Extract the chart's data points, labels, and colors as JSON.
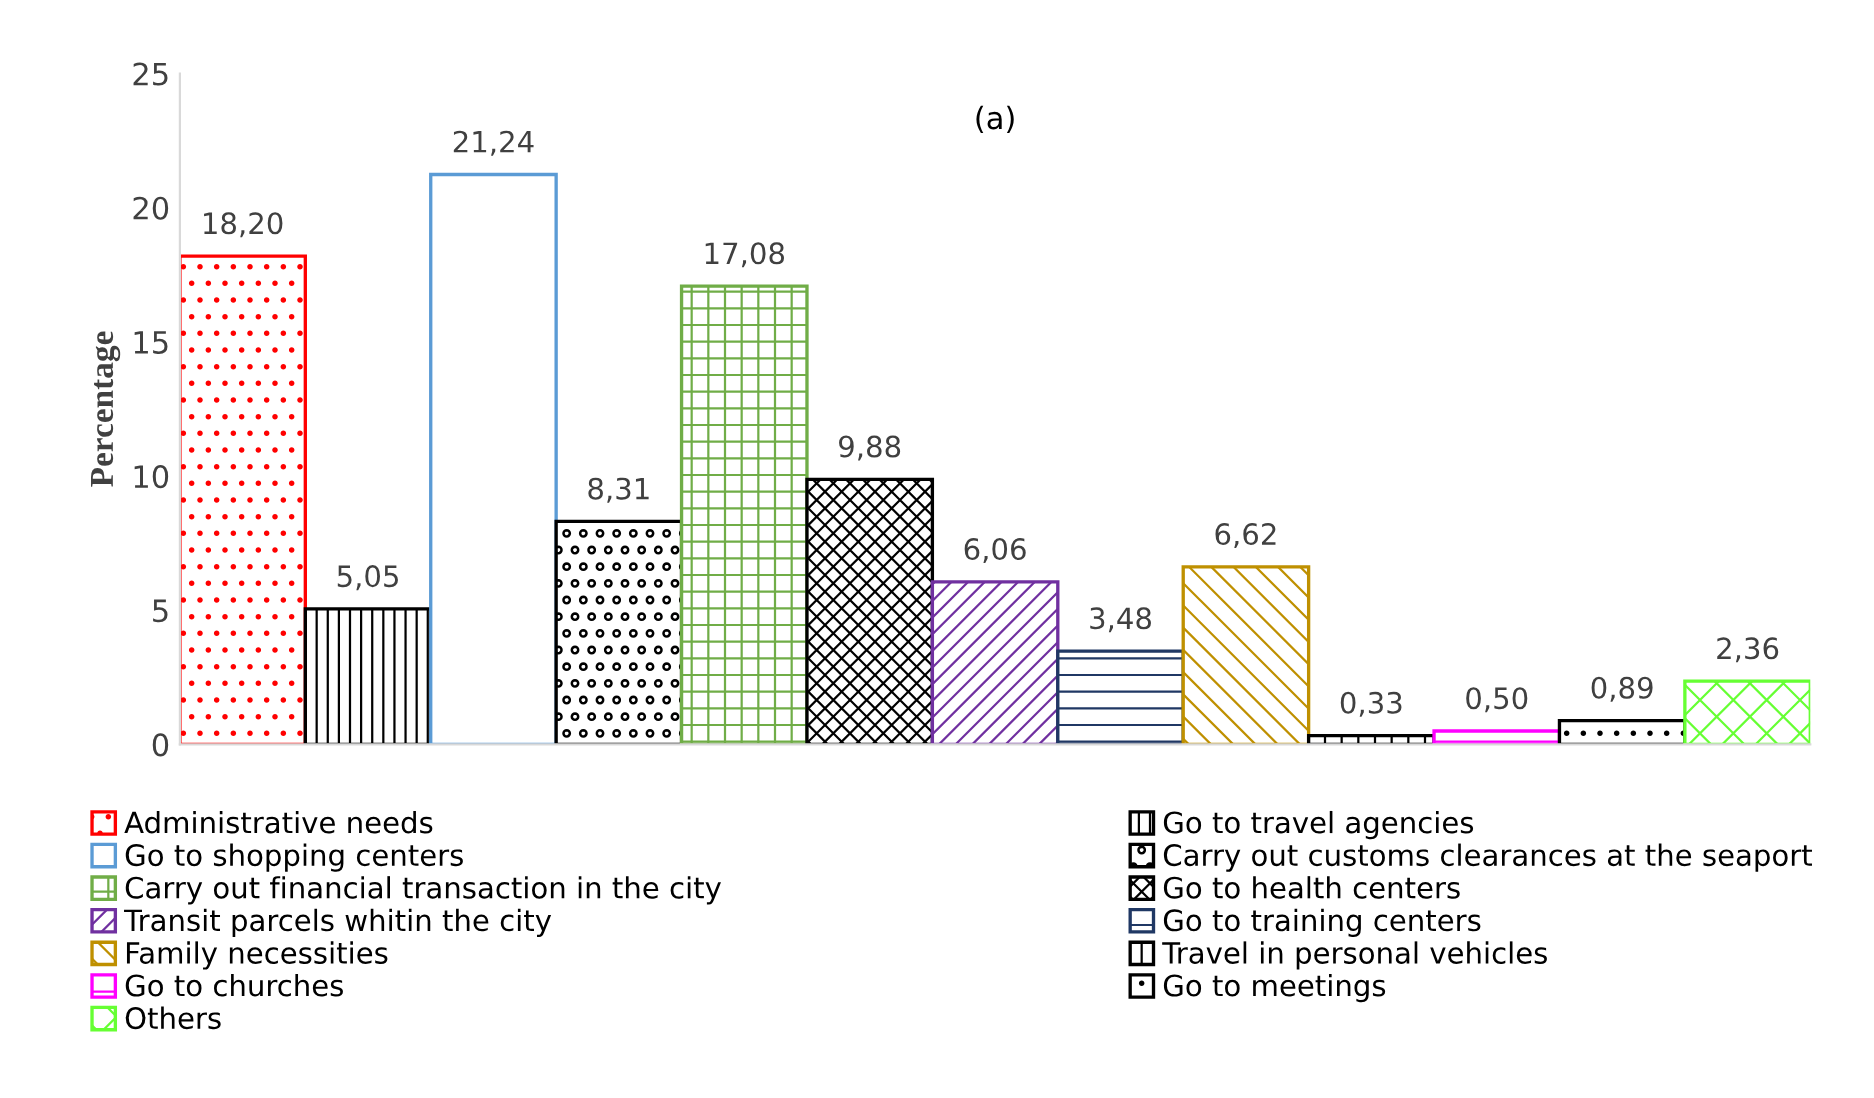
{
  "chart_data": {
    "type": "bar",
    "title": "(a)",
    "ylabel": "Percentage",
    "categories": [
      null,
      null,
      null,
      null,
      null,
      null,
      null,
      null,
      null,
      null,
      null,
      null,
      null
    ],
    "series": [
      {
        "name": "Administrative needs",
        "color": "#ff0000",
        "values": [
          18.2,
          null,
          null,
          null,
          null,
          null,
          null,
          null,
          null,
          null,
          null,
          null,
          null
        ],
        "value_labels": [
          "18,20",
          null,
          null,
          null,
          null,
          null,
          null,
          null,
          null,
          null,
          null,
          null,
          null
        ]
      },
      {
        "name": "Go to travel agencies",
        "color": "#000000",
        "values": [
          null,
          5.05,
          null,
          null,
          null,
          null,
          null,
          null,
          null,
          null,
          null,
          null,
          null
        ],
        "value_labels": [
          null,
          "5,05",
          null,
          null,
          null,
          null,
          null,
          null,
          null,
          null,
          null,
          null,
          null
        ]
      },
      {
        "name": "Go to shopping centers",
        "color": "#5b9bd5",
        "values": [
          null,
          null,
          21.24,
          null,
          null,
          null,
          null,
          null,
          null,
          null,
          null,
          null,
          null
        ],
        "value_labels": [
          null,
          null,
          "21,24",
          null,
          null,
          null,
          null,
          null,
          null,
          null,
          null,
          null,
          null
        ]
      },
      {
        "name": "Carry out customs clearances at the seaport",
        "color": "#000000",
        "values": [
          null,
          null,
          null,
          8.31,
          null,
          null,
          null,
          null,
          null,
          null,
          null,
          null,
          null
        ],
        "value_labels": [
          null,
          null,
          null,
          "8,31",
          null,
          null,
          null,
          null,
          null,
          null,
          null,
          null,
          null
        ]
      },
      {
        "name": "Carry out financial transaction in the city",
        "color": "#70ad47",
        "values": [
          null,
          null,
          null,
          null,
          17.08,
          null,
          null,
          null,
          null,
          null,
          null,
          null,
          null
        ],
        "value_labels": [
          null,
          null,
          null,
          null,
          "17,08",
          null,
          null,
          null,
          null,
          null,
          null,
          null,
          null
        ]
      },
      {
        "name": "Go to health centers",
        "color": "#000000",
        "values": [
          null,
          null,
          null,
          null,
          null,
          9.88,
          null,
          null,
          null,
          null,
          null,
          null,
          null
        ],
        "value_labels": [
          null,
          null,
          null,
          null,
          null,
          "9,88",
          null,
          null,
          null,
          null,
          null,
          null,
          null
        ]
      },
      {
        "name": "Transit parcels whitin the city",
        "color": "#7030a0",
        "values": [
          null,
          null,
          null,
          null,
          null,
          null,
          6.06,
          null,
          null,
          null,
          null,
          null,
          null
        ],
        "value_labels": [
          null,
          null,
          null,
          null,
          null,
          null,
          "6,06",
          null,
          null,
          null,
          null,
          null,
          null
        ]
      },
      {
        "name": "Go to training centers",
        "color": "#203864",
        "values": [
          null,
          null,
          null,
          null,
          null,
          null,
          null,
          3.48,
          null,
          null,
          null,
          null,
          null
        ],
        "value_labels": [
          null,
          null,
          null,
          null,
          null,
          null,
          null,
          "3,48",
          null,
          null,
          null,
          null,
          null
        ]
      },
      {
        "name": "Family necessities",
        "color": "#bf9000",
        "values": [
          null,
          null,
          null,
          null,
          null,
          null,
          null,
          null,
          6.62,
          null,
          null,
          null,
          null
        ],
        "value_labels": [
          null,
          null,
          null,
          null,
          null,
          null,
          null,
          null,
          "6,62",
          null,
          null,
          null,
          null
        ]
      },
      {
        "name": "Travel in personal vehicles",
        "color": "#000000",
        "values": [
          null,
          null,
          null,
          null,
          null,
          null,
          null,
          null,
          null,
          0.33,
          null,
          null,
          null
        ],
        "value_labels": [
          null,
          null,
          null,
          null,
          null,
          null,
          null,
          null,
          null,
          "0,33",
          null,
          null,
          null
        ]
      },
      {
        "name": "Go to churches",
        "color": "#ff00ff",
        "values": [
          null,
          null,
          null,
          null,
          null,
          null,
          null,
          null,
          null,
          null,
          0.5,
          null,
          null
        ],
        "value_labels": [
          null,
          null,
          null,
          null,
          null,
          null,
          null,
          null,
          null,
          null,
          "0,50",
          null,
          null
        ]
      },
      {
        "name": "Go to meetings",
        "color": "#000000",
        "values": [
          null,
          null,
          null,
          null,
          null,
          null,
          null,
          null,
          null,
          null,
          null,
          0.89,
          null
        ],
        "value_labels": [
          null,
          null,
          null,
          null,
          null,
          null,
          null,
          null,
          null,
          null,
          null,
          "0,89",
          null
        ]
      },
      {
        "name": "Others",
        "color": "#66ff33",
        "values": [
          null,
          null,
          null,
          null,
          null,
          null,
          null,
          null,
          null,
          null,
          null,
          null,
          2.36
        ],
        "value_labels": [
          null,
          null,
          null,
          null,
          null,
          null,
          null,
          null,
          null,
          null,
          null,
          null,
          "2,36"
        ]
      }
    ],
    "ylim": [
      0,
      25
    ],
    "yticks": [
      0,
      5,
      10,
      15,
      20,
      25
    ],
    "tick_labels": "y",
    "grid": false,
    "legend": "bottom"
  }
}
